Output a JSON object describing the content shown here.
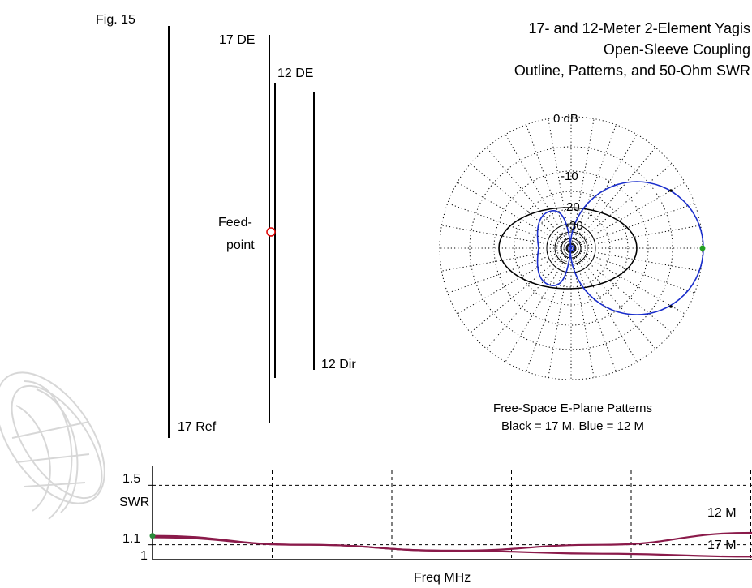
{
  "figure_label": "Fig. 15",
  "title": [
    "17- and 12-Meter 2-Element Yagis",
    "Open-Sleeve Coupling",
    "Outline, Patterns, and 50-Ohm SWR"
  ],
  "outline": {
    "labels": {
      "17_de": "17 DE",
      "12_de": "12 DE",
      "feedpoint_1": "Feed-",
      "feedpoint_2": "point",
      "12_dir": "12 Dir",
      "17_ref": "17 Ref"
    }
  },
  "polar": {
    "ring_labels": [
      "0 dB",
      "-10",
      "-20",
      "-30"
    ],
    "caption_1": "Free-Space E-Plane Patterns",
    "caption_2": "Black = 17 M, Blue = 12 M",
    "colors": {
      "17m": "#000000",
      "12m": "#1a2ecc",
      "feed_marker": "#e00000",
      "max_marker": "#22a022"
    }
  },
  "chart_data": {
    "type": "line",
    "title": "",
    "xlabel": "Freq MHz",
    "ylabel": "SWR",
    "y_ticks": [
      "1.5",
      "1.1",
      "1"
    ],
    "ylim": [
      1.0,
      1.6
    ],
    "grid": true,
    "series": [
      {
        "name": "12 M",
        "color": "#8a1a4a",
        "x": [
          0,
          0.25,
          0.5,
          0.75,
          1.0
        ],
        "y": [
          1.16,
          1.1,
          1.06,
          1.1,
          1.18
        ]
      },
      {
        "name": "17 M",
        "color": "#8a1a4a",
        "x": [
          0,
          0.25,
          0.5,
          0.75,
          1.0
        ],
        "y": [
          1.15,
          1.1,
          1.06,
          1.04,
          1.02
        ]
      }
    ]
  }
}
